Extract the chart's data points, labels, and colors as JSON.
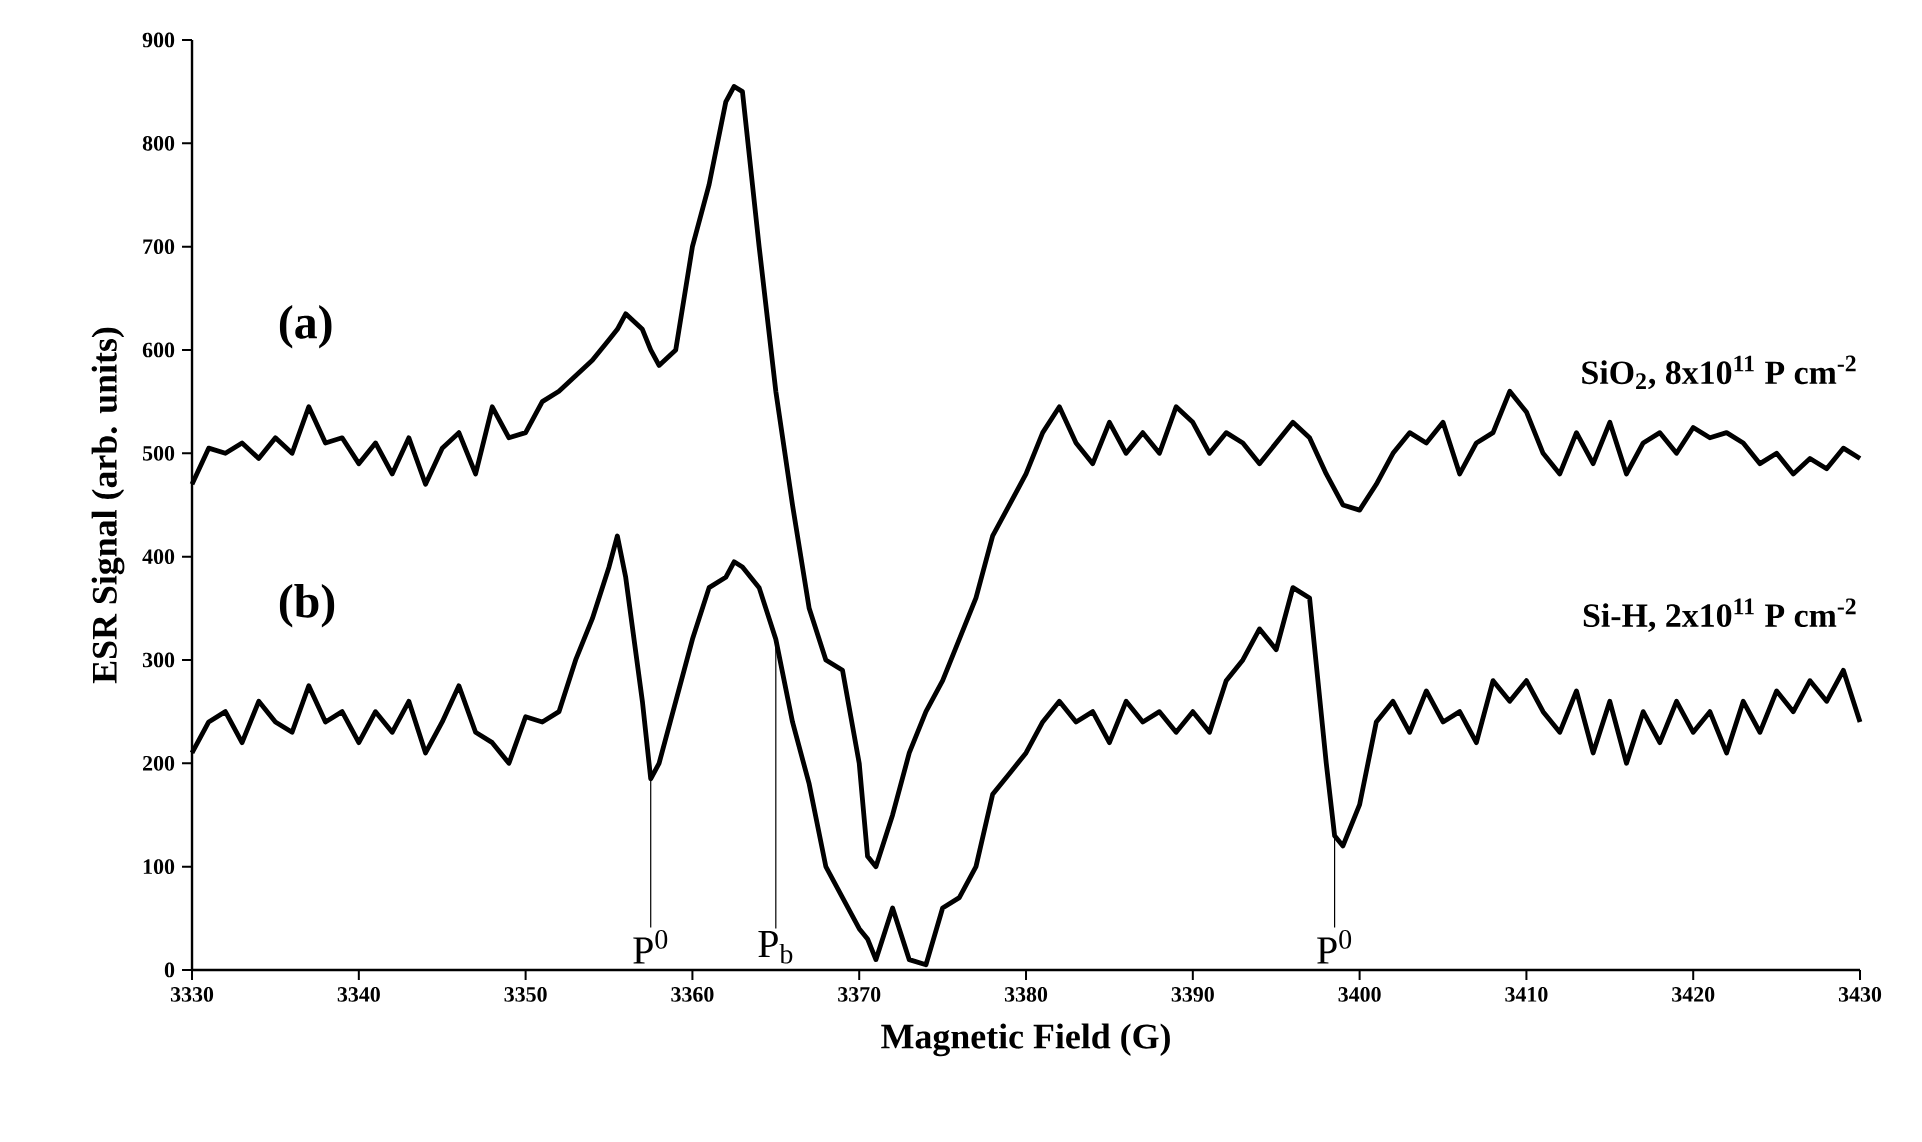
{
  "chart_data": {
    "type": "line",
    "xlabel": "Magnetic Field (G)",
    "ylabel": "ESR Signal (arb. units)",
    "xlim": [
      3330,
      3430
    ],
    "xticks": [
      3330,
      3340,
      3350,
      3360,
      3370,
      3380,
      3390,
      3400,
      3410,
      3420,
      3430
    ],
    "ylim": [
      0,
      900
    ],
    "yticks": [
      0,
      100,
      200,
      300,
      400,
      500,
      600,
      700,
      800,
      900
    ],
    "grid": false,
    "marker": "none",
    "line_style": "solid",
    "x": [
      3330,
      3331,
      3332,
      3333,
      3334,
      3335,
      3336,
      3337,
      3338,
      3339,
      3340,
      3341,
      3342,
      3343,
      3344,
      3345,
      3346,
      3347,
      3348,
      3349,
      3350,
      3351,
      3352,
      3353,
      3354,
      3355,
      3355.5,
      3356,
      3357,
      3357.5,
      3358,
      3359,
      3360,
      3361,
      3362,
      3362.5,
      3363,
      3364,
      3365,
      3366,
      3367,
      3368,
      3369,
      3370,
      3370.5,
      3371,
      3372,
      3373,
      3374,
      3375,
      3376,
      3377,
      3378,
      3379,
      3380,
      3381,
      3382,
      3383,
      3384,
      3385,
      3386,
      3387,
      3388,
      3389,
      3390,
      3391,
      3392,
      3393,
      3394,
      3395,
      3396,
      3397,
      3398,
      3398.5,
      3399,
      3400,
      3401,
      3402,
      3403,
      3404,
      3405,
      3406,
      3407,
      3408,
      3409,
      3410,
      3411,
      3412,
      3413,
      3414,
      3415,
      3416,
      3417,
      3418,
      3419,
      3420,
      3421,
      3422,
      3423,
      3424,
      3425,
      3426,
      3427,
      3428,
      3429,
      3430
    ],
    "series": [
      {
        "name": "SiO$_{2}$, 8x10$^{11}$ P cm$^{-2}$",
        "color": "#000000",
        "values": [
          470,
          505,
          500,
          510,
          495,
          515,
          500,
          545,
          510,
          515,
          490,
          510,
          480,
          515,
          470,
          505,
          520,
          480,
          545,
          515,
          520,
          550,
          560,
          575,
          590,
          610,
          620,
          635,
          620,
          600,
          585,
          600,
          700,
          760,
          840,
          855,
          850,
          700,
          560,
          450,
          350,
          300,
          290,
          200,
          110,
          100,
          150,
          210,
          250,
          280,
          320,
          360,
          420,
          450,
          480,
          520,
          545,
          510,
          490,
          530,
          500,
          520,
          500,
          545,
          530,
          500,
          520,
          510,
          490,
          510,
          530,
          515,
          480,
          465,
          450,
          445,
          470,
          500,
          520,
          510,
          530,
          480,
          510,
          520,
          560,
          540,
          500,
          480,
          520,
          490,
          530,
          480,
          510,
          520,
          500,
          525,
          515,
          520,
          510,
          490,
          500,
          480,
          495,
          485,
          505,
          495
        ]
      },
      {
        "name": "Si-H, 2x10$^{11}$ P cm$^{-2}$",
        "color": "#000000",
        "values": [
          210,
          240,
          250,
          220,
          260,
          240,
          230,
          275,
          240,
          250,
          220,
          250,
          230,
          260,
          210,
          240,
          275,
          230,
          220,
          200,
          245,
          240,
          250,
          300,
          340,
          390,
          420,
          380,
          260,
          185,
          200,
          260,
          320,
          370,
          380,
          395,
          390,
          370,
          320,
          240,
          180,
          100,
          70,
          40,
          30,
          10,
          60,
          10,
          5,
          60,
          70,
          100,
          170,
          190,
          210,
          240,
          260,
          240,
          250,
          220,
          260,
          240,
          250,
          230,
          250,
          230,
          280,
          300,
          330,
          310,
          370,
          360,
          200,
          130,
          120,
          160,
          240,
          260,
          230,
          270,
          240,
          250,
          220,
          280,
          260,
          280,
          250,
          230,
          270,
          210,
          260,
          200,
          250,
          220,
          260,
          230,
          250,
          210,
          260,
          230,
          270,
          250,
          280,
          260,
          290,
          240
        ]
      }
    ],
    "annotations": [
      "(a)",
      "(b)",
      {
        "text": "P$^{0}$",
        "x": 3357.5,
        "y": 185
      },
      {
        "text": "P$_{b}$",
        "x": 3365,
        "y": 320
      },
      {
        "text": "P$^{0}$",
        "x": 3398.5,
        "y": 130
      }
    ]
  }
}
